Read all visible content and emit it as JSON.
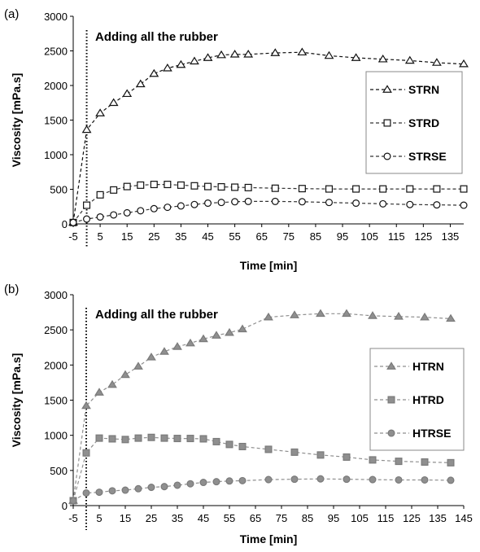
{
  "chart_data": [
    {
      "panel_label": "(a)",
      "type": "line",
      "xlabel": "Time [min]",
      "ylabel": "Viscosity [mPa.s]",
      "xlim": [
        -5,
        140
      ],
      "ylim": [
        0,
        3000
      ],
      "xticks": [
        -5,
        5,
        15,
        25,
        35,
        45,
        55,
        65,
        75,
        85,
        95,
        105,
        115,
        125,
        135
      ],
      "yticks": [
        0,
        500,
        1000,
        1500,
        2000,
        2500,
        3000
      ],
      "annotation": {
        "text": "Adding all the rubber",
        "x": 0
      },
      "legend": "right",
      "marker_fill": "open",
      "series": [
        {
          "name": "STRN",
          "marker": "triangle",
          "color": "#111111",
          "dash": "dashed",
          "x": [
            -5,
            0,
            5,
            10,
            15,
            20,
            25,
            30,
            35,
            40,
            45,
            50,
            55,
            60,
            70,
            80,
            90,
            100,
            110,
            120,
            130,
            140
          ],
          "y": [
            20,
            1360,
            1600,
            1750,
            1880,
            2020,
            2170,
            2250,
            2300,
            2350,
            2400,
            2440,
            2450,
            2450,
            2470,
            2480,
            2430,
            2400,
            2380,
            2360,
            2330,
            2310
          ]
        },
        {
          "name": "STRD",
          "marker": "square",
          "color": "#333333",
          "dash": "dashed",
          "x": [
            -5,
            0,
            5,
            10,
            15,
            20,
            25,
            30,
            35,
            40,
            45,
            50,
            55,
            60,
            70,
            80,
            90,
            100,
            110,
            120,
            130,
            140
          ],
          "y": [
            20,
            270,
            420,
            490,
            540,
            560,
            570,
            570,
            560,
            550,
            540,
            535,
            530,
            525,
            515,
            510,
            505,
            505,
            505,
            505,
            505,
            505
          ]
        },
        {
          "name": "STRSE",
          "marker": "circle",
          "color": "#333333",
          "dash": "dashed",
          "x": [
            -5,
            0,
            5,
            10,
            15,
            20,
            25,
            30,
            35,
            40,
            45,
            50,
            55,
            60,
            70,
            80,
            90,
            100,
            110,
            120,
            130,
            140
          ],
          "y": [
            20,
            70,
            100,
            130,
            160,
            190,
            220,
            240,
            260,
            280,
            300,
            310,
            320,
            325,
            325,
            320,
            310,
            300,
            290,
            280,
            275,
            270
          ]
        }
      ]
    },
    {
      "panel_label": "(b)",
      "type": "line",
      "xlabel": "Time [min]",
      "ylabel": "Viscosity [mPa.s]",
      "xlim": [
        -5,
        145
      ],
      "ylim": [
        0,
        3000
      ],
      "xticks": [
        -5,
        5,
        15,
        25,
        35,
        45,
        55,
        65,
        75,
        85,
        95,
        105,
        115,
        125,
        135,
        145
      ],
      "yticks": [
        0,
        500,
        1000,
        1500,
        2000,
        2500,
        3000
      ],
      "annotation": {
        "text": "Adding all the rubber",
        "x": 0
      },
      "legend": "right",
      "marker_fill": "filled",
      "series": [
        {
          "name": "HTRN",
          "marker": "triangle",
          "color": "#8f8f8f",
          "dash": "dashed",
          "x": [
            -5,
            0,
            5,
            10,
            15,
            20,
            25,
            30,
            35,
            40,
            45,
            50,
            55,
            60,
            70,
            80,
            90,
            100,
            110,
            120,
            130,
            140
          ],
          "y": [
            70,
            1420,
            1610,
            1720,
            1860,
            1980,
            2110,
            2190,
            2260,
            2310,
            2370,
            2420,
            2460,
            2510,
            2680,
            2710,
            2730,
            2730,
            2700,
            2690,
            2680,
            2660
          ]
        },
        {
          "name": "HTRD",
          "marker": "square",
          "color": "#8f8f8f",
          "dash": "dashed",
          "x": [
            -5,
            0,
            5,
            10,
            15,
            20,
            25,
            30,
            35,
            40,
            45,
            50,
            55,
            60,
            70,
            80,
            90,
            100,
            110,
            120,
            130,
            140
          ],
          "y": [
            70,
            750,
            960,
            950,
            940,
            960,
            970,
            960,
            955,
            955,
            950,
            910,
            870,
            840,
            800,
            760,
            720,
            690,
            650,
            630,
            620,
            610
          ]
        },
        {
          "name": "HTRSE",
          "marker": "circle",
          "color": "#8f8f8f",
          "dash": "dashed",
          "x": [
            -5,
            0,
            5,
            10,
            15,
            20,
            25,
            30,
            35,
            40,
            45,
            50,
            55,
            60,
            70,
            80,
            90,
            100,
            110,
            120,
            130,
            140
          ],
          "y": [
            70,
            180,
            190,
            210,
            220,
            240,
            260,
            270,
            290,
            310,
            330,
            340,
            350,
            355,
            370,
            375,
            380,
            375,
            370,
            365,
            365,
            360
          ]
        }
      ]
    }
  ]
}
